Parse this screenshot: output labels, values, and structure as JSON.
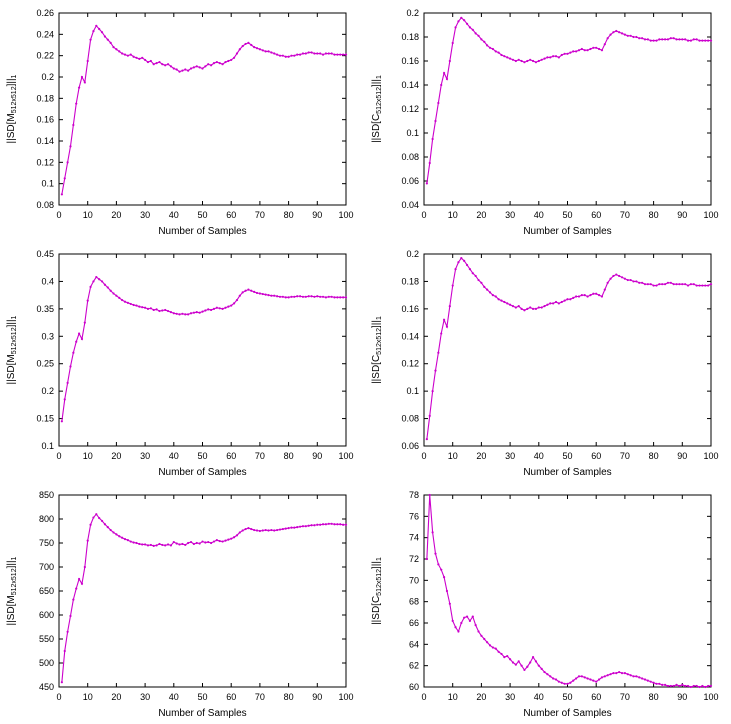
{
  "page": {
    "background": "#ffffff",
    "layout": "2x3 grid of gnuplot-style convergence plots"
  },
  "chart_data": [
    {
      "type": "line",
      "position": "top-left",
      "title": "",
      "xlabel": "Number of Samples",
      "ylabel": {
        "pre": "||SD[M",
        "sub": "512x512",
        "post": "]||",
        "sub2": "1"
      },
      "line_color": "#cc00cc",
      "grid": false,
      "legend": "none",
      "xlim": [
        0,
        100
      ],
      "ylim": [
        0.08,
        0.26
      ],
      "xticks": [
        0,
        10,
        20,
        30,
        40,
        50,
        60,
        70,
        80,
        90,
        100
      ],
      "yticks": [
        0.08,
        0.1,
        0.12,
        0.14,
        0.16,
        0.18,
        0.2,
        0.22,
        0.24,
        0.26
      ],
      "x_start": 1,
      "x_step": 1,
      "y": [
        0.09,
        0.105,
        0.12,
        0.135,
        0.155,
        0.175,
        0.19,
        0.2,
        0.195,
        0.215,
        0.235,
        0.243,
        0.248,
        0.245,
        0.242,
        0.238,
        0.235,
        0.232,
        0.228,
        0.226,
        0.224,
        0.222,
        0.221,
        0.22,
        0.221,
        0.219,
        0.218,
        0.217,
        0.218,
        0.216,
        0.214,
        0.215,
        0.212,
        0.213,
        0.214,
        0.212,
        0.211,
        0.212,
        0.21,
        0.208,
        0.207,
        0.205,
        0.206,
        0.207,
        0.206,
        0.208,
        0.209,
        0.21,
        0.209,
        0.208,
        0.21,
        0.212,
        0.211,
        0.213,
        0.214,
        0.213,
        0.212,
        0.214,
        0.215,
        0.216,
        0.218,
        0.222,
        0.226,
        0.229,
        0.231,
        0.232,
        0.23,
        0.228,
        0.227,
        0.226,
        0.225,
        0.224,
        0.224,
        0.223,
        0.222,
        0.221,
        0.22,
        0.22,
        0.219,
        0.219,
        0.22,
        0.22,
        0.221,
        0.221,
        0.222,
        0.222,
        0.223,
        0.223,
        0.222,
        0.222,
        0.222,
        0.221,
        0.222,
        0.222,
        0.222,
        0.221,
        0.221,
        0.221,
        0.221,
        0.221
      ]
    },
    {
      "type": "line",
      "position": "top-right",
      "title": "",
      "xlabel": "Number of Samples",
      "ylabel": {
        "pre": "||SD[C",
        "sub": "512x512",
        "post": "]||",
        "sub2": "1"
      },
      "line_color": "#cc00cc",
      "grid": false,
      "legend": "none",
      "xlim": [
        0,
        100
      ],
      "ylim": [
        0.04,
        0.2
      ],
      "xticks": [
        0,
        10,
        20,
        30,
        40,
        50,
        60,
        70,
        80,
        90,
        100
      ],
      "yticks": [
        0.04,
        0.06,
        0.08,
        0.1,
        0.12,
        0.14,
        0.16,
        0.18,
        0.2
      ],
      "x_start": 1,
      "x_step": 1,
      "y": [
        0.058,
        0.075,
        0.095,
        0.11,
        0.125,
        0.14,
        0.15,
        0.145,
        0.16,
        0.175,
        0.188,
        0.193,
        0.196,
        0.194,
        0.191,
        0.188,
        0.186,
        0.183,
        0.181,
        0.178,
        0.176,
        0.173,
        0.171,
        0.17,
        0.168,
        0.167,
        0.165,
        0.164,
        0.163,
        0.162,
        0.161,
        0.16,
        0.161,
        0.16,
        0.159,
        0.16,
        0.161,
        0.16,
        0.159,
        0.16,
        0.161,
        0.162,
        0.163,
        0.163,
        0.164,
        0.164,
        0.163,
        0.165,
        0.166,
        0.166,
        0.167,
        0.168,
        0.168,
        0.169,
        0.17,
        0.169,
        0.169,
        0.17,
        0.171,
        0.171,
        0.17,
        0.169,
        0.174,
        0.179,
        0.182,
        0.184,
        0.185,
        0.184,
        0.183,
        0.182,
        0.181,
        0.181,
        0.18,
        0.18,
        0.179,
        0.179,
        0.178,
        0.178,
        0.177,
        0.177,
        0.177,
        0.178,
        0.178,
        0.178,
        0.178,
        0.179,
        0.179,
        0.178,
        0.178,
        0.178,
        0.178,
        0.177,
        0.177,
        0.178,
        0.178,
        0.177,
        0.177,
        0.177,
        0.177,
        0.177
      ]
    },
    {
      "type": "line",
      "position": "middle-left",
      "title": "",
      "xlabel": "Number of Samples",
      "ylabel": {
        "pre": "||SD[M",
        "sub": "512x512",
        "post": "]||",
        "sub2": "1"
      },
      "line_color": "#cc00cc",
      "grid": false,
      "legend": "none",
      "xlim": [
        0,
        100
      ],
      "ylim": [
        0.1,
        0.45
      ],
      "xticks": [
        0,
        10,
        20,
        30,
        40,
        50,
        60,
        70,
        80,
        90,
        100
      ],
      "yticks": [
        0.1,
        0.15,
        0.2,
        0.25,
        0.3,
        0.35,
        0.4,
        0.45
      ],
      "x_start": 1,
      "x_step": 1,
      "y": [
        0.145,
        0.185,
        0.215,
        0.245,
        0.27,
        0.29,
        0.305,
        0.295,
        0.325,
        0.365,
        0.39,
        0.4,
        0.408,
        0.404,
        0.4,
        0.394,
        0.389,
        0.383,
        0.378,
        0.374,
        0.37,
        0.366,
        0.363,
        0.361,
        0.359,
        0.357,
        0.356,
        0.354,
        0.353,
        0.352,
        0.35,
        0.351,
        0.348,
        0.349,
        0.346,
        0.347,
        0.348,
        0.346,
        0.344,
        0.342,
        0.341,
        0.34,
        0.341,
        0.34,
        0.34,
        0.342,
        0.343,
        0.344,
        0.343,
        0.345,
        0.347,
        0.349,
        0.348,
        0.35,
        0.352,
        0.351,
        0.35,
        0.352,
        0.354,
        0.356,
        0.36,
        0.366,
        0.374,
        0.38,
        0.383,
        0.385,
        0.383,
        0.381,
        0.379,
        0.378,
        0.377,
        0.376,
        0.375,
        0.374,
        0.374,
        0.373,
        0.372,
        0.372,
        0.371,
        0.371,
        0.372,
        0.372,
        0.373,
        0.373,
        0.372,
        0.372,
        0.373,
        0.373,
        0.372,
        0.373,
        0.372,
        0.372,
        0.371,
        0.372,
        0.372,
        0.371,
        0.371,
        0.371,
        0.371,
        0.371
      ]
    },
    {
      "type": "line",
      "position": "middle-right",
      "title": "",
      "xlabel": "Number of Samples",
      "ylabel": {
        "pre": "||SD[C",
        "sub": "512x512",
        "post": "]||",
        "sub2": "1"
      },
      "line_color": "#cc00cc",
      "grid": false,
      "legend": "none",
      "xlim": [
        0,
        100
      ],
      "ylim": [
        0.06,
        0.2
      ],
      "xticks": [
        0,
        10,
        20,
        30,
        40,
        50,
        60,
        70,
        80,
        90,
        100
      ],
      "yticks": [
        0.06,
        0.08,
        0.1,
        0.12,
        0.14,
        0.16,
        0.18,
        0.2
      ],
      "x_start": 1,
      "x_step": 1,
      "y": [
        0.065,
        0.082,
        0.1,
        0.115,
        0.128,
        0.142,
        0.152,
        0.147,
        0.162,
        0.177,
        0.189,
        0.194,
        0.197,
        0.195,
        0.192,
        0.189,
        0.186,
        0.184,
        0.181,
        0.179,
        0.176,
        0.174,
        0.172,
        0.17,
        0.169,
        0.167,
        0.166,
        0.165,
        0.164,
        0.163,
        0.162,
        0.161,
        0.162,
        0.16,
        0.159,
        0.16,
        0.161,
        0.16,
        0.16,
        0.161,
        0.161,
        0.162,
        0.163,
        0.164,
        0.164,
        0.165,
        0.164,
        0.165,
        0.166,
        0.167,
        0.167,
        0.168,
        0.169,
        0.169,
        0.17,
        0.17,
        0.169,
        0.17,
        0.171,
        0.171,
        0.17,
        0.169,
        0.174,
        0.179,
        0.182,
        0.184,
        0.185,
        0.184,
        0.183,
        0.182,
        0.181,
        0.181,
        0.18,
        0.18,
        0.179,
        0.179,
        0.178,
        0.178,
        0.178,
        0.177,
        0.177,
        0.178,
        0.178,
        0.178,
        0.179,
        0.179,
        0.178,
        0.178,
        0.178,
        0.178,
        0.178,
        0.177,
        0.178,
        0.178,
        0.177,
        0.177,
        0.177,
        0.177,
        0.177,
        0.178
      ]
    },
    {
      "type": "line",
      "position": "bottom-left",
      "title": "",
      "xlabel": "Number of Samples",
      "ylabel": {
        "pre": "||SD[M",
        "sub": "512x512",
        "post": "]||",
        "sub2": "1"
      },
      "line_color": "#cc00cc",
      "grid": false,
      "legend": "none",
      "xlim": [
        0,
        100
      ],
      "ylim": [
        450,
        850
      ],
      "xticks": [
        0,
        10,
        20,
        30,
        40,
        50,
        60,
        70,
        80,
        90,
        100
      ],
      "yticks": [
        450,
        500,
        550,
        600,
        650,
        700,
        750,
        800,
        850
      ],
      "x_start": 1,
      "x_step": 1,
      "y": [
        460,
        525,
        565,
        598,
        632,
        655,
        675,
        665,
        700,
        755,
        788,
        803,
        810,
        802,
        796,
        789,
        783,
        777,
        772,
        768,
        764,
        761,
        758,
        756,
        753,
        751,
        750,
        748,
        747,
        747,
        745,
        746,
        744,
        745,
        748,
        746,
        745,
        747,
        745,
        752,
        749,
        747,
        748,
        746,
        750,
        752,
        748,
        750,
        749,
        753,
        751,
        752,
        750,
        753,
        756,
        754,
        753,
        755,
        757,
        759,
        762,
        766,
        772,
        776,
        779,
        781,
        779,
        777,
        776,
        775,
        776,
        777,
        776,
        777,
        776,
        777,
        778,
        779,
        780,
        781,
        782,
        782,
        783,
        784,
        785,
        785,
        786,
        787,
        787,
        788,
        788,
        789,
        789,
        790,
        790,
        789,
        789,
        789,
        788,
        788
      ]
    },
    {
      "type": "line",
      "position": "bottom-right",
      "title": "",
      "xlabel": "Number of Samples",
      "ylabel": {
        "pre": "||SD[C",
        "sub": "512x512",
        "post": "]||",
        "sub2": "1"
      },
      "line_color": "#cc00cc",
      "grid": false,
      "legend": "none",
      "xlim": [
        0,
        100
      ],
      "ylim": [
        60,
        78
      ],
      "xticks": [
        0,
        10,
        20,
        30,
        40,
        50,
        60,
        70,
        80,
        90,
        100
      ],
      "yticks": [
        60,
        62,
        64,
        66,
        68,
        70,
        72,
        74,
        76,
        78
      ],
      "x_start": 1,
      "x_step": 1,
      "y": [
        72.0,
        78.0,
        74.5,
        72.5,
        71.5,
        71.0,
        70.3,
        69.0,
        67.8,
        66.2,
        65.6,
        65.2,
        66.0,
        66.5,
        66.6,
        66.2,
        66.6,
        65.8,
        65.2,
        64.8,
        64.5,
        64.2,
        63.9,
        63.7,
        63.6,
        63.3,
        63.1,
        62.8,
        62.9,
        62.6,
        62.3,
        62.1,
        62.4,
        62.0,
        61.6,
        61.9,
        62.3,
        62.8,
        62.4,
        62.0,
        61.7,
        61.4,
        61.2,
        61.0,
        60.8,
        60.7,
        60.5,
        60.4,
        60.3,
        60.3,
        60.4,
        60.6,
        60.8,
        61.0,
        61.0,
        60.9,
        60.8,
        60.7,
        60.6,
        60.5,
        60.7,
        60.9,
        61.0,
        61.1,
        61.2,
        61.3,
        61.3,
        61.4,
        61.3,
        61.3,
        61.2,
        61.1,
        61.0,
        61.0,
        60.9,
        60.8,
        60.7,
        60.6,
        60.5,
        60.4,
        60.3,
        60.3,
        60.2,
        60.2,
        60.1,
        60.1,
        60.1,
        60.2,
        60.1,
        60.2,
        60.1,
        60.1,
        60.0,
        60.1,
        60.1,
        60.0,
        60.1,
        60.0,
        60.1,
        60.1
      ]
    }
  ]
}
